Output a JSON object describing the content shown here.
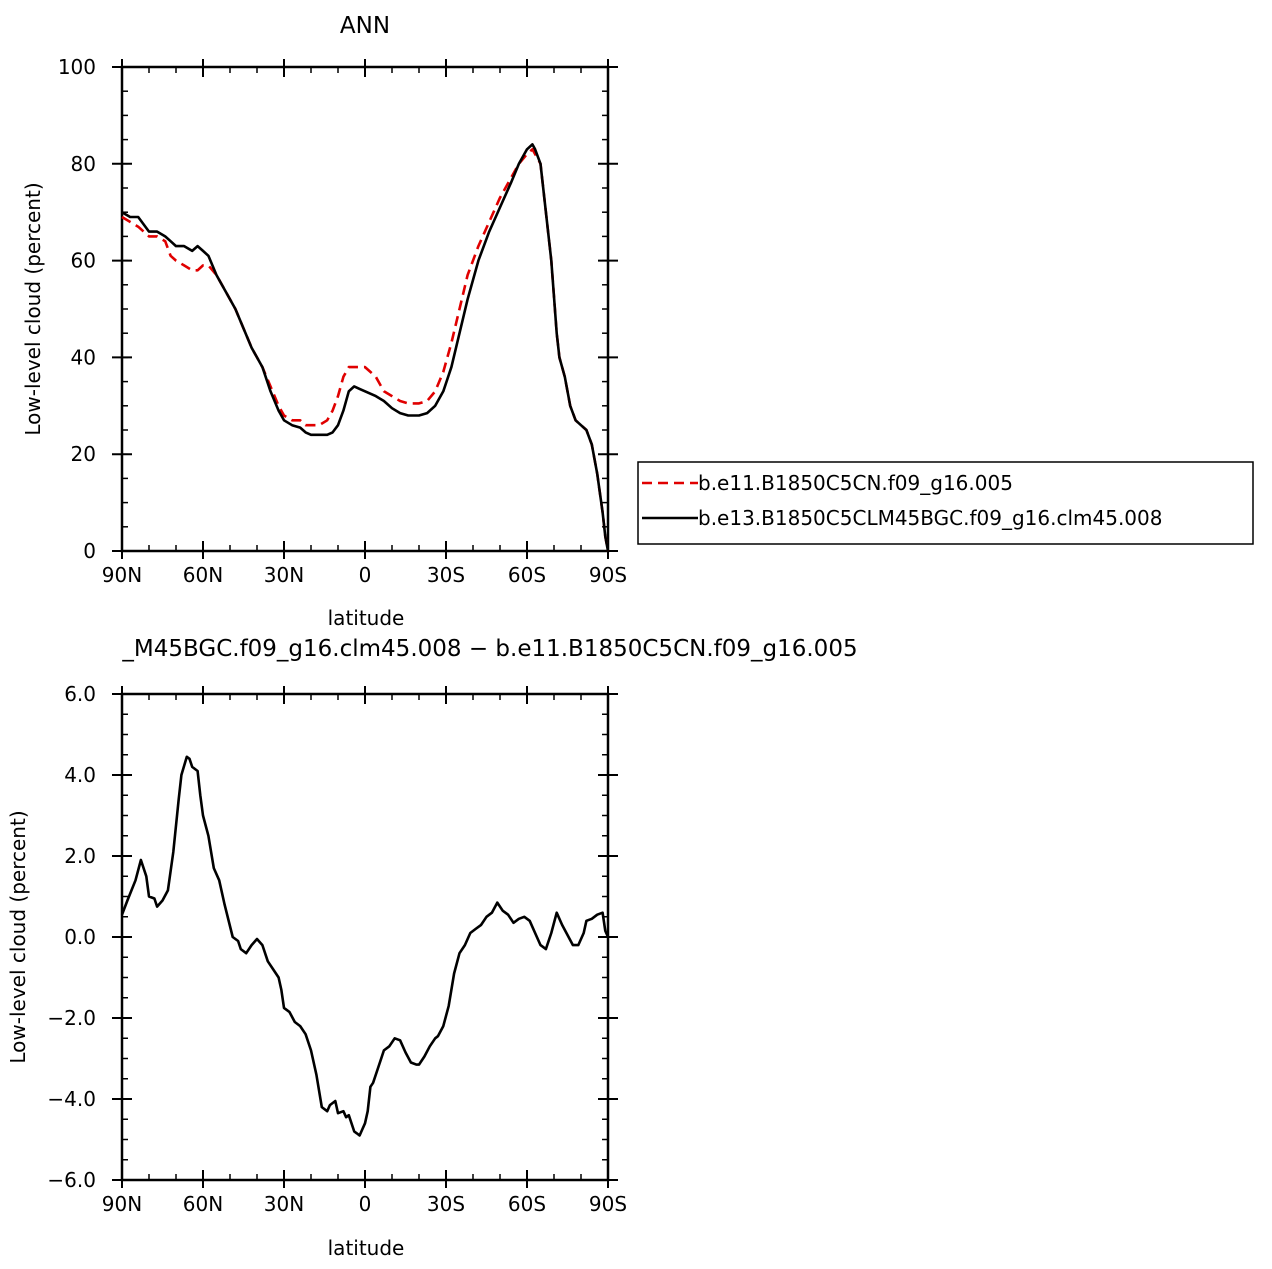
{
  "chart_data": [
    {
      "type": "line",
      "title": "ANN",
      "xlabel": "latitude",
      "ylabel": "Low-level cloud (percent)",
      "xlim": [
        90,
        -90
      ],
      "ylim": [
        0,
        100
      ],
      "x_ticks": [
        90,
        60,
        30,
        0,
        -30,
        -60,
        -90
      ],
      "x_tick_labels": [
        "90N",
        "60N",
        "30N",
        "0",
        "30S",
        "60S",
        "90S"
      ],
      "y_ticks": [
        0,
        20,
        40,
        60,
        80,
        100
      ],
      "y_tick_labels": [
        "0",
        "20",
        "40",
        "60",
        "80",
        "100"
      ],
      "legend": {
        "placement": "right",
        "entries": [
          "b.e11.B1850C5CN.f09_g16.005",
          "b.e13.B1850C5CLM45BGC.f09_g16.clm45.008"
        ]
      },
      "series": [
        {
          "name": "b.e11.B1850C5CN.f09_g16.005",
          "color": "#e00000",
          "dash": "dashed",
          "x": [
            90,
            87,
            84,
            80,
            77,
            74,
            72,
            70,
            67,
            64,
            62,
            60,
            58,
            55,
            52,
            48,
            45,
            42,
            38,
            35,
            32,
            30,
            27,
            24,
            22,
            20,
            17,
            14,
            12,
            10,
            8,
            6,
            4,
            2,
            0,
            -2,
            -4,
            -7,
            -10,
            -13,
            -16,
            -20,
            -23,
            -26,
            -29,
            -32,
            -35,
            -38,
            -42,
            -46,
            -50,
            -54,
            -57,
            -60,
            -62,
            -63,
            -65,
            -67,
            -69,
            -71,
            -72,
            -74,
            -76,
            -78,
            -80,
            -82,
            -84,
            -86,
            -88,
            -89,
            -90
          ],
          "y": [
            69,
            68,
            67,
            65,
            65,
            64,
            61,
            60,
            59,
            58,
            58,
            59,
            59,
            57,
            54,
            50,
            46,
            42,
            38,
            34,
            30,
            28,
            27,
            27,
            26,
            26,
            26,
            27,
            29,
            32,
            36,
            38,
            38,
            38,
            38,
            37,
            36,
            33,
            32,
            31,
            30.5,
            30.5,
            31,
            33,
            37,
            43,
            50,
            57,
            63,
            68,
            73,
            77,
            80,
            82,
            83,
            82,
            80,
            70,
            60,
            45,
            40,
            36,
            30,
            27,
            26,
            25,
            22,
            16,
            8,
            3,
            0
          ]
        },
        {
          "name": "b.e13.B1850C5CLM45BGC.f09_g16.clm45.008",
          "color": "#000000",
          "dash": "solid",
          "x": [
            90,
            87,
            84,
            80,
            77,
            74,
            72,
            70,
            67,
            64,
            62,
            60,
            58,
            55,
            52,
            48,
            45,
            42,
            38,
            35,
            32,
            30,
            27,
            24,
            22,
            20,
            17,
            14,
            12,
            10,
            8,
            6,
            4,
            2,
            0,
            -2,
            -4,
            -7,
            -10,
            -13,
            -16,
            -20,
            -23,
            -26,
            -29,
            -32,
            -35,
            -38,
            -42,
            -46,
            -50,
            -54,
            -57,
            -60,
            -62,
            -63,
            -65,
            -67,
            -69,
            -71,
            -72,
            -74,
            -76,
            -78,
            -80,
            -82,
            -84,
            -86,
            -88,
            -89,
            -90
          ],
          "y": [
            70,
            69,
            69,
            66,
            66,
            65,
            64,
            63,
            63,
            62,
            63,
            62,
            61,
            57,
            54,
            50,
            46,
            42,
            38,
            33,
            29,
            27,
            26,
            25.5,
            24.5,
            24,
            24,
            24,
            24.5,
            26,
            29,
            33,
            34,
            33.5,
            33,
            32.5,
            32,
            31,
            29.5,
            28.5,
            28,
            28,
            28.5,
            30,
            33,
            38,
            45,
            52,
            60,
            66,
            71,
            76,
            80,
            83,
            84,
            83,
            80,
            70,
            60,
            45,
            40,
            36,
            30,
            27,
            26,
            25,
            22,
            16,
            8,
            3,
            0
          ]
        }
      ]
    },
    {
      "type": "line",
      "title": "_M45BGC.f09_g16.clm45.008 − b.e11.B1850C5CN.f09_g16.005",
      "xlabel": "latitude",
      "ylabel": "Low-level cloud (percent)",
      "xlim": [
        90,
        -90
      ],
      "ylim": [
        -6,
        6
      ],
      "x_ticks": [
        90,
        60,
        30,
        0,
        -30,
        -60,
        -90
      ],
      "x_tick_labels": [
        "90N",
        "60N",
        "30N",
        "0",
        "30S",
        "60S",
        "90S"
      ],
      "y_ticks": [
        -6,
        -4,
        -2,
        0,
        2,
        4,
        6
      ],
      "y_tick_labels": [
        "−6.0",
        "−4.0",
        "−2.0",
        "0.0",
        "2.0",
        "4.0",
        "6.0"
      ],
      "series": [
        {
          "color": "#000000",
          "dash": "solid",
          "x": [
            90,
            88,
            85,
            83,
            81,
            80,
            78,
            77,
            75,
            73,
            71,
            69,
            68,
            66,
            65,
            64,
            62,
            61,
            60,
            58,
            56,
            54,
            52,
            49,
            47,
            46,
            44,
            42,
            40,
            38,
            36,
            34,
            32,
            31,
            30,
            28,
            26,
            24,
            22,
            20,
            18,
            16,
            14,
            13,
            11,
            10,
            8,
            7,
            6,
            4,
            3,
            2,
            1,
            0,
            -1,
            -2,
            -3,
            -5,
            -7,
            -9,
            -11,
            -13,
            -15,
            -17,
            -19,
            -20,
            -22,
            -24,
            -26,
            -27,
            -29,
            -31,
            -33,
            -35,
            -37,
            -39,
            -41,
            -43,
            -45,
            -47,
            -49,
            -51,
            -53,
            -55,
            -57,
            -59,
            -61,
            -63,
            -65,
            -67,
            -69,
            -71,
            -73,
            -75,
            -77,
            -79,
            -81,
            -82,
            -84,
            -86,
            -88,
            -89,
            -90
          ],
          "y": [
            0.55,
            0.9,
            1.4,
            1.9,
            1.5,
            1.0,
            0.95,
            0.75,
            0.9,
            1.15,
            2.1,
            3.4,
            4.0,
            4.45,
            4.4,
            4.2,
            4.1,
            3.5,
            3.0,
            2.5,
            1.7,
            1.4,
            0.8,
            0.0,
            -0.1,
            -0.3,
            -0.4,
            -0.2,
            -0.05,
            -0.2,
            -0.6,
            -0.8,
            -1.0,
            -1.3,
            -1.75,
            -1.85,
            -2.1,
            -2.2,
            -2.4,
            -2.8,
            -3.4,
            -4.2,
            -4.3,
            -4.15,
            -4.05,
            -4.35,
            -4.3,
            -4.45,
            -4.4,
            -4.8,
            -4.85,
            -4.9,
            -4.75,
            -4.6,
            -4.3,
            -3.7,
            -3.6,
            -3.2,
            -2.8,
            -2.7,
            -2.5,
            -2.55,
            -2.85,
            -3.1,
            -3.15,
            -3.15,
            -2.95,
            -2.7,
            -2.5,
            -2.45,
            -2.2,
            -1.7,
            -0.9,
            -0.4,
            -0.2,
            0.1,
            0.2,
            0.3,
            0.5,
            0.6,
            0.85,
            0.65,
            0.55,
            0.35,
            0.45,
            0.5,
            0.4,
            0.1,
            -0.2,
            -0.3,
            0.1,
            0.6,
            0.3,
            0.05,
            -0.2,
            -0.2,
            0.1,
            0.4,
            0.45,
            0.55,
            0.6,
            0.15,
            0.0
          ]
        }
      ]
    }
  ]
}
